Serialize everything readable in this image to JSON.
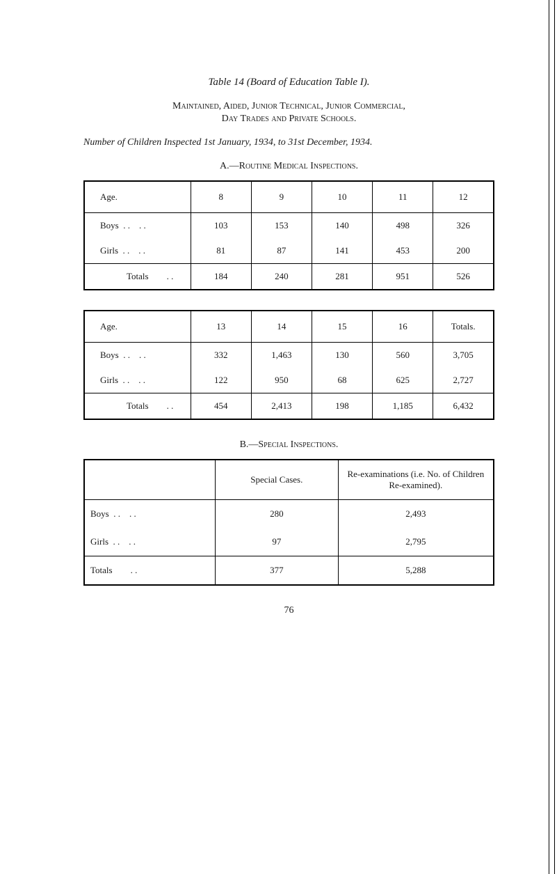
{
  "title": "Table 14 (Board of Education Table I).",
  "heading1": "Maintained, Aided, Junior Technical, Junior Commercial,",
  "heading2": "Day Trades and Private Schools.",
  "subtitle": "Number of Children Inspected 1st January, 1934, to 31st December, 1934.",
  "sectionA": "A.—Routine Medical Inspections.",
  "sectionB": "B.—Special Inspections.",
  "tableA1": {
    "head": [
      "Age.",
      "8",
      "9",
      "10",
      "11",
      "12"
    ],
    "rows": [
      [
        "Boys",
        "103",
        "153",
        "140",
        "498",
        "326"
      ],
      [
        "Girls",
        "81",
        "87",
        "141",
        "453",
        "200"
      ]
    ],
    "totals": [
      "Totals",
      "184",
      "240",
      "281",
      "951",
      "526"
    ]
  },
  "tableA2": {
    "head": [
      "Age.",
      "13",
      "14",
      "15",
      "16",
      "Totals."
    ],
    "rows": [
      [
        "Boys",
        "332",
        "1,463",
        "130",
        "560",
        "3,705"
      ],
      [
        "Girls",
        "122",
        "950",
        "68",
        "625",
        "2,727"
      ]
    ],
    "totals": [
      "Totals",
      "454",
      "2,413",
      "198",
      "1,185",
      "6,432"
    ]
  },
  "tableB": {
    "head": [
      "",
      "Special Cases.",
      "Re-examinations (i.e. No. of Children Re-examined)."
    ],
    "rows": [
      [
        "Boys",
        "280",
        "2,493"
      ],
      [
        "Girls",
        "97",
        "2,795"
      ]
    ],
    "totals": [
      "Totals",
      "377",
      "5,288"
    ]
  },
  "pageNumber": "76"
}
